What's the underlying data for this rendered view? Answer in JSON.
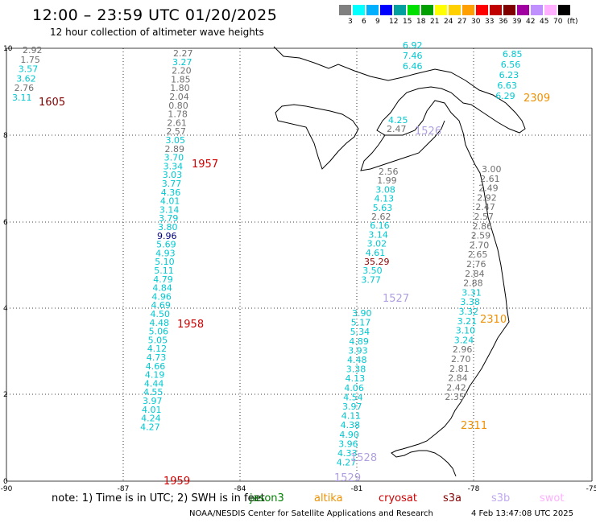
{
  "header": {
    "title": "12:00 – 23:59 UTC 01/20/2025",
    "subtitle": "12 hour collection of altimeter wave heights"
  },
  "colorbar": {
    "colors": [
      "#808080",
      "#00ffff",
      "#00b0ff",
      "#0000ff",
      "#00a0a0",
      "#00e000",
      "#00a000",
      "#ffff00",
      "#ffd000",
      "#ffa000",
      "#ff0000",
      "#c00000",
      "#800000",
      "#a000a0",
      "#c090ff",
      "#ffb0ff",
      "#000000"
    ],
    "labels": [
      "3",
      "6",
      "9",
      "12",
      "15",
      "18",
      "21",
      "24",
      "27",
      "30",
      "33",
      "36",
      "39",
      "42",
      "45",
      "70",
      "(ft)"
    ]
  },
  "axes": {
    "x_ticks": [
      "-90",
      "-87",
      "-84",
      "-81",
      "-78",
      "-75"
    ],
    "y_ticks": [
      "0",
      "2",
      "4",
      "6",
      "8",
      "10"
    ]
  },
  "passes": [
    {
      "id": "1605",
      "color": "#800000"
    },
    {
      "id": "1957",
      "color": "#d00000"
    },
    {
      "id": "1958",
      "color": "#d00000"
    },
    {
      "id": "1959",
      "color": "#d00000"
    },
    {
      "id": "1526",
      "color": "#b0a0e0"
    },
    {
      "id": "1527",
      "color": "#b0a0e0"
    },
    {
      "id": "1528",
      "color": "#b0a0e0"
    },
    {
      "id": "1529",
      "color": "#b0a0e0"
    },
    {
      "id": "2309",
      "color": "#f09000"
    },
    {
      "id": "2310",
      "color": "#f09000"
    },
    {
      "id": "2311",
      "color": "#f09000"
    }
  ],
  "values": {
    "gray": "#707070",
    "cyan": "#00c8d0",
    "blue": "#000080",
    "darkred": "#900000",
    "track_1605": [
      [
        "2.92",
        "gray"
      ],
      [
        "1.75",
        "gray"
      ],
      [
        "3.57",
        "cyan"
      ],
      [
        "3.62",
        "cyan"
      ],
      [
        "2.76",
        "gray"
      ],
      [
        "3.11",
        "cyan"
      ]
    ],
    "track_195x": [
      [
        "2.27",
        "gray"
      ],
      [
        "3.27",
        "cyan"
      ],
      [
        "2.20",
        "gray"
      ],
      [
        "1.85",
        "gray"
      ],
      [
        "1.80",
        "gray"
      ],
      [
        "2.04",
        "gray"
      ],
      [
        "0.80",
        "gray"
      ],
      [
        "1.78",
        "gray"
      ],
      [
        "2.61",
        "gray"
      ],
      [
        "2.57",
        "gray"
      ],
      [
        "3.05",
        "cyan"
      ],
      [
        "2.89",
        "gray"
      ],
      [
        "3.70",
        "cyan"
      ],
      [
        "3.34",
        "cyan"
      ],
      [
        "3.03",
        "cyan"
      ],
      [
        "3.77",
        "cyan"
      ],
      [
        "4.36",
        "cyan"
      ],
      [
        "4.01",
        "cyan"
      ],
      [
        "3.14",
        "cyan"
      ],
      [
        "3.79",
        "cyan"
      ],
      [
        "3.80",
        "cyan"
      ],
      [
        "9.96",
        "blue"
      ],
      [
        "5.69",
        "cyan"
      ],
      [
        "4.93",
        "cyan"
      ],
      [
        "5.10",
        "cyan"
      ],
      [
        "5.11",
        "cyan"
      ],
      [
        "4.79",
        "cyan"
      ],
      [
        "4.84",
        "cyan"
      ],
      [
        "4.96",
        "cyan"
      ],
      [
        "4.69",
        "cyan"
      ],
      [
        "4.50",
        "cyan"
      ],
      [
        "4.48",
        "cyan"
      ],
      [
        "5.06",
        "cyan"
      ],
      [
        "5.05",
        "cyan"
      ],
      [
        "4.12",
        "cyan"
      ],
      [
        "4.73",
        "cyan"
      ],
      [
        "4.66",
        "cyan"
      ],
      [
        "4.19",
        "cyan"
      ],
      [
        "4.44",
        "cyan"
      ],
      [
        "4.55",
        "cyan"
      ],
      [
        "3.97",
        "cyan"
      ],
      [
        "4.01",
        "cyan"
      ],
      [
        "4.24",
        "cyan"
      ],
      [
        "4.27",
        "cyan"
      ]
    ],
    "track_152x_top": [
      [
        "6.92",
        "cyan"
      ],
      [
        "7.46",
        "cyan"
      ],
      [
        "6.46",
        "cyan"
      ]
    ],
    "track_152x_bay": [
      [
        "4.25",
        "cyan"
      ],
      [
        "2.47",
        "gray"
      ]
    ],
    "track_152x": [
      [
        "2.56",
        "gray"
      ],
      [
        "1.99",
        "gray"
      ],
      [
        "3.08",
        "cyan"
      ],
      [
        "4.13",
        "cyan"
      ],
      [
        "5.63",
        "cyan"
      ],
      [
        "2.62",
        "gray"
      ],
      [
        "6.16",
        "cyan"
      ],
      [
        "3.14",
        "cyan"
      ],
      [
        "3.02",
        "cyan"
      ],
      [
        "4.61",
        "cyan"
      ],
      [
        "35.29",
        "darkred"
      ],
      [
        "3.50",
        "cyan"
      ],
      [
        "3.77",
        "cyan"
      ]
    ],
    "track_152x_low": [
      [
        "3.90",
        "cyan"
      ],
      [
        "5.17",
        "cyan"
      ],
      [
        "5.34",
        "cyan"
      ],
      [
        "4.89",
        "cyan"
      ],
      [
        "3.93",
        "cyan"
      ],
      [
        "4.48",
        "cyan"
      ],
      [
        "3.38",
        "cyan"
      ],
      [
        "4.13",
        "cyan"
      ],
      [
        "4.06",
        "cyan"
      ],
      [
        "4.54",
        "cyan"
      ],
      [
        "3.97",
        "cyan"
      ],
      [
        "4.11",
        "cyan"
      ],
      [
        "4.38",
        "cyan"
      ],
      [
        "4.90",
        "cyan"
      ],
      [
        "3.96",
        "cyan"
      ],
      [
        "4.33",
        "cyan"
      ],
      [
        "4.27",
        "cyan"
      ]
    ],
    "track_230x_top": [
      [
        "6.85",
        "cyan"
      ],
      [
        "6.56",
        "cyan"
      ],
      [
        "6.23",
        "cyan"
      ],
      [
        "6.63",
        "cyan"
      ],
      [
        "6.29",
        "cyan"
      ]
    ],
    "track_230x": [
      [
        "3.00",
        "gray"
      ],
      [
        "2.61",
        "gray"
      ],
      [
        "2.49",
        "gray"
      ],
      [
        "2.92",
        "gray"
      ],
      [
        "2.47",
        "gray"
      ],
      [
        "2.57",
        "gray"
      ],
      [
        "2.86",
        "gray"
      ],
      [
        "2.59",
        "gray"
      ],
      [
        "2.70",
        "gray"
      ],
      [
        "2.65",
        "gray"
      ],
      [
        "2.76",
        "gray"
      ],
      [
        "2.84",
        "gray"
      ],
      [
        "2.88",
        "gray"
      ],
      [
        "3.31",
        "cyan"
      ],
      [
        "3.38",
        "cyan"
      ],
      [
        "3.32",
        "cyan"
      ],
      [
        "3.21",
        "cyan"
      ],
      [
        "3.10",
        "cyan"
      ],
      [
        "3.24",
        "cyan"
      ],
      [
        "2.96",
        "gray"
      ],
      [
        "2.70",
        "gray"
      ],
      [
        "2.81",
        "gray"
      ],
      [
        "2.84",
        "gray"
      ],
      [
        "2.42",
        "gray"
      ],
      [
        "2.35",
        "gray"
      ]
    ]
  },
  "footer": {
    "note": "note:  1) Time is in UTC; 2) SWH is in feet",
    "satellites": [
      {
        "name": "jason3",
        "color": "#008000"
      },
      {
        "name": "altika",
        "color": "#f09000"
      },
      {
        "name": "cryosat",
        "color": "#d00000"
      },
      {
        "name": "s3a",
        "color": "#800000"
      },
      {
        "name": "s3b",
        "color": "#c0a8f0"
      },
      {
        "name": "swot",
        "color": "#ffb0ff"
      }
    ],
    "credit": "NOAA/NESDIS Center for Satellite Applications and Research",
    "timestamp": "4 Feb 13:47:08 UTC 2025"
  }
}
